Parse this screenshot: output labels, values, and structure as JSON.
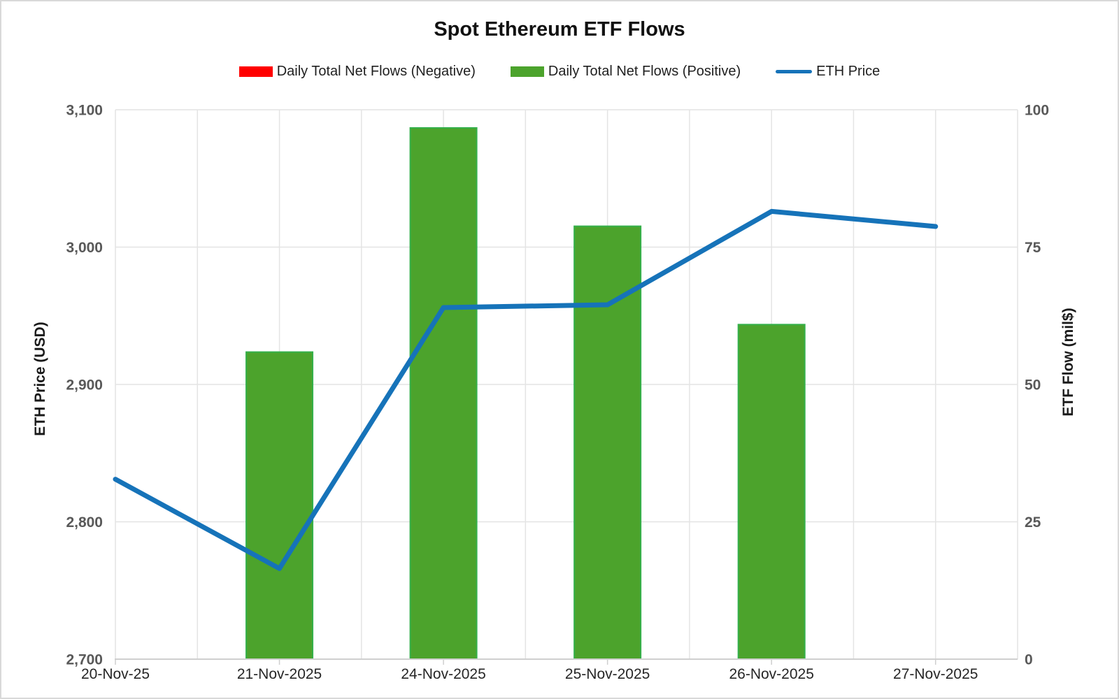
{
  "title": "Spot Ethereum ETF Flows",
  "legend": [
    {
      "label": "Daily Total Net Flows (Negative)",
      "swatch": "bar",
      "color": "#ff0000",
      "name": "negative-flows"
    },
    {
      "label": "Daily Total Net Flows (Positive)",
      "swatch": "bar",
      "color": "#4ca32c",
      "name": "positive-flows"
    },
    {
      "label": "ETH Price",
      "swatch": "line",
      "color": "#1673b9",
      "name": "eth-price"
    }
  ],
  "chart_data": {
    "type": "bar",
    "subtype": "combo-bar-line-dual-axis",
    "title": "Spot Ethereum ETF Flows",
    "categories": [
      "20-Nov-25",
      "21-Nov-2025",
      "24-Nov-2025",
      "25-Nov-2025",
      "26-Nov-2025",
      "27-Nov-2025"
    ],
    "series": [
      {
        "name": "Daily Total Net Flows (Negative)",
        "type": "bar",
        "axis": "right",
        "color": "#ff0000",
        "values": [
          null,
          null,
          null,
          null,
          null,
          null
        ]
      },
      {
        "name": "Daily Total Net Flows (Positive)",
        "type": "bar",
        "axis": "right",
        "color": "#4ca32c",
        "values": [
          null,
          55.9,
          96.7,
          78.8,
          60.9,
          null
        ]
      },
      {
        "name": "ETH Price",
        "type": "line",
        "axis": "left",
        "color": "#1673b9",
        "values": [
          2831,
          2766,
          2956,
          2958,
          3026,
          3015
        ]
      }
    ],
    "left_axis": {
      "title": "ETH Price (USD)",
      "min": 2700,
      "max": 3100,
      "tick_step": 100,
      "tick_labels": [
        "3,100",
        "3,000",
        "2,900",
        "2,800",
        "2,700"
      ]
    },
    "right_axis": {
      "title": "ETF Flow (mil$)",
      "min": 0,
      "max": 100,
      "tick_step": 25,
      "tick_labels": [
        "100",
        "75",
        "50",
        "25",
        "0"
      ]
    },
    "grid": true,
    "legend_position": "top"
  },
  "colors": {
    "bar_positive": "#4ca32c",
    "bar_positive_border": "#35b04a",
    "bar_negative": "#ff0000",
    "line": "#1673b9",
    "gridline": "#e4e4e4",
    "axis_line": "#cfcfcf",
    "tick_label_y": "#595959",
    "tick_label_x": "#262626"
  }
}
